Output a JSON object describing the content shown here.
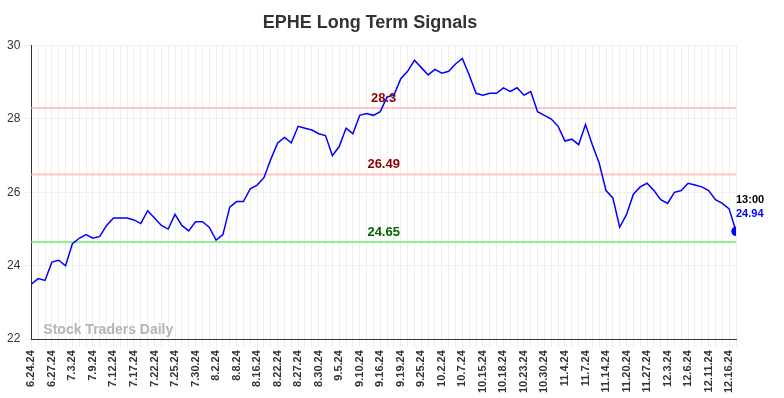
{
  "chart_data": {
    "type": "line",
    "title": "EPHE Long Term Signals",
    "categories": [
      "6.24.24",
      null,
      null,
      "6.27.24",
      null,
      null,
      "7.3.24",
      null,
      null,
      "7.9.24",
      null,
      null,
      "7.12.24",
      null,
      null,
      "7.17.24",
      null,
      null,
      "7.22.24",
      null,
      null,
      "7.25.24",
      null,
      null,
      "7.30.24",
      null,
      null,
      "8.2.24",
      null,
      null,
      "8.8.24",
      null,
      null,
      "8.16.24",
      null,
      null,
      "8.22.24",
      null,
      null,
      "8.27.24",
      null,
      null,
      "8.30.24",
      null,
      null,
      "9.5.24",
      null,
      null,
      "9.10.24",
      null,
      null,
      "9.16.24",
      null,
      null,
      "9.19.24",
      null,
      null,
      "9.25.24",
      null,
      null,
      "10.2.24",
      null,
      null,
      "10.7.24",
      null,
      null,
      "10.15.24",
      null,
      null,
      "10.18.24",
      null,
      null,
      "10.23.24",
      null,
      null,
      "10.30.24",
      null,
      null,
      "11.4.24",
      null,
      null,
      "11.7.24",
      null,
      null,
      "11.14.24",
      null,
      null,
      "11.20.24",
      null,
      null,
      "11.27.24",
      null,
      null,
      "12.3.24",
      null,
      null,
      "12.6.24",
      null,
      null,
      "12.11.24",
      null,
      null,
      "12.16.24",
      null
    ],
    "values": [
      23.5,
      23.65,
      23.6,
      24.1,
      24.15,
      24.0,
      24.6,
      24.75,
      24.85,
      24.75,
      24.8,
      25.1,
      25.3,
      25.3,
      25.3,
      25.25,
      25.15,
      25.5,
      25.3,
      25.1,
      25.0,
      25.4,
      25.1,
      24.95,
      25.2,
      25.2,
      25.05,
      24.7,
      24.85,
      25.6,
      25.75,
      25.75,
      26.1,
      26.2,
      26.4,
      26.9,
      27.35,
      27.5,
      27.35,
      27.8,
      27.75,
      27.7,
      27.6,
      27.55,
      27.0,
      27.25,
      27.75,
      27.6,
      28.1,
      28.15,
      28.1,
      28.2,
      28.6,
      28.65,
      29.1,
      29.3,
      29.6,
      29.4,
      29.2,
      29.35,
      29.25,
      29.3,
      29.5,
      29.65,
      29.2,
      28.7,
      28.65,
      28.7,
      28.7,
      28.85,
      28.75,
      28.85,
      28.65,
      28.75,
      28.2,
      28.1,
      28.0,
      27.8,
      27.4,
      27.45,
      27.3,
      27.85,
      27.3,
      26.8,
      26.05,
      25.85,
      25.05,
      25.4,
      25.95,
      26.15,
      26.25,
      26.05,
      25.8,
      25.7,
      26.0,
      26.05,
      26.25,
      26.2,
      26.15,
      26.05,
      25.8,
      25.7,
      25.55,
      24.94
    ],
    "color": "#0000ff",
    "ylim": [
      22,
      30
    ],
    "yticks": [
      22,
      24,
      26,
      28,
      30
    ],
    "grid": true,
    "reference_lines": [
      {
        "value": 28.3,
        "label": "28.3",
        "color": "#ffc4c4"
      },
      {
        "value": 26.49,
        "label": "26.49",
        "color": "#ffc4c4"
      },
      {
        "value": 24.65,
        "label": "24.65",
        "color": "#90ee90"
      }
    ],
    "last_point": {
      "time": "13:00",
      "value": 24.94
    },
    "watermark": "Stock Traders Daily"
  }
}
